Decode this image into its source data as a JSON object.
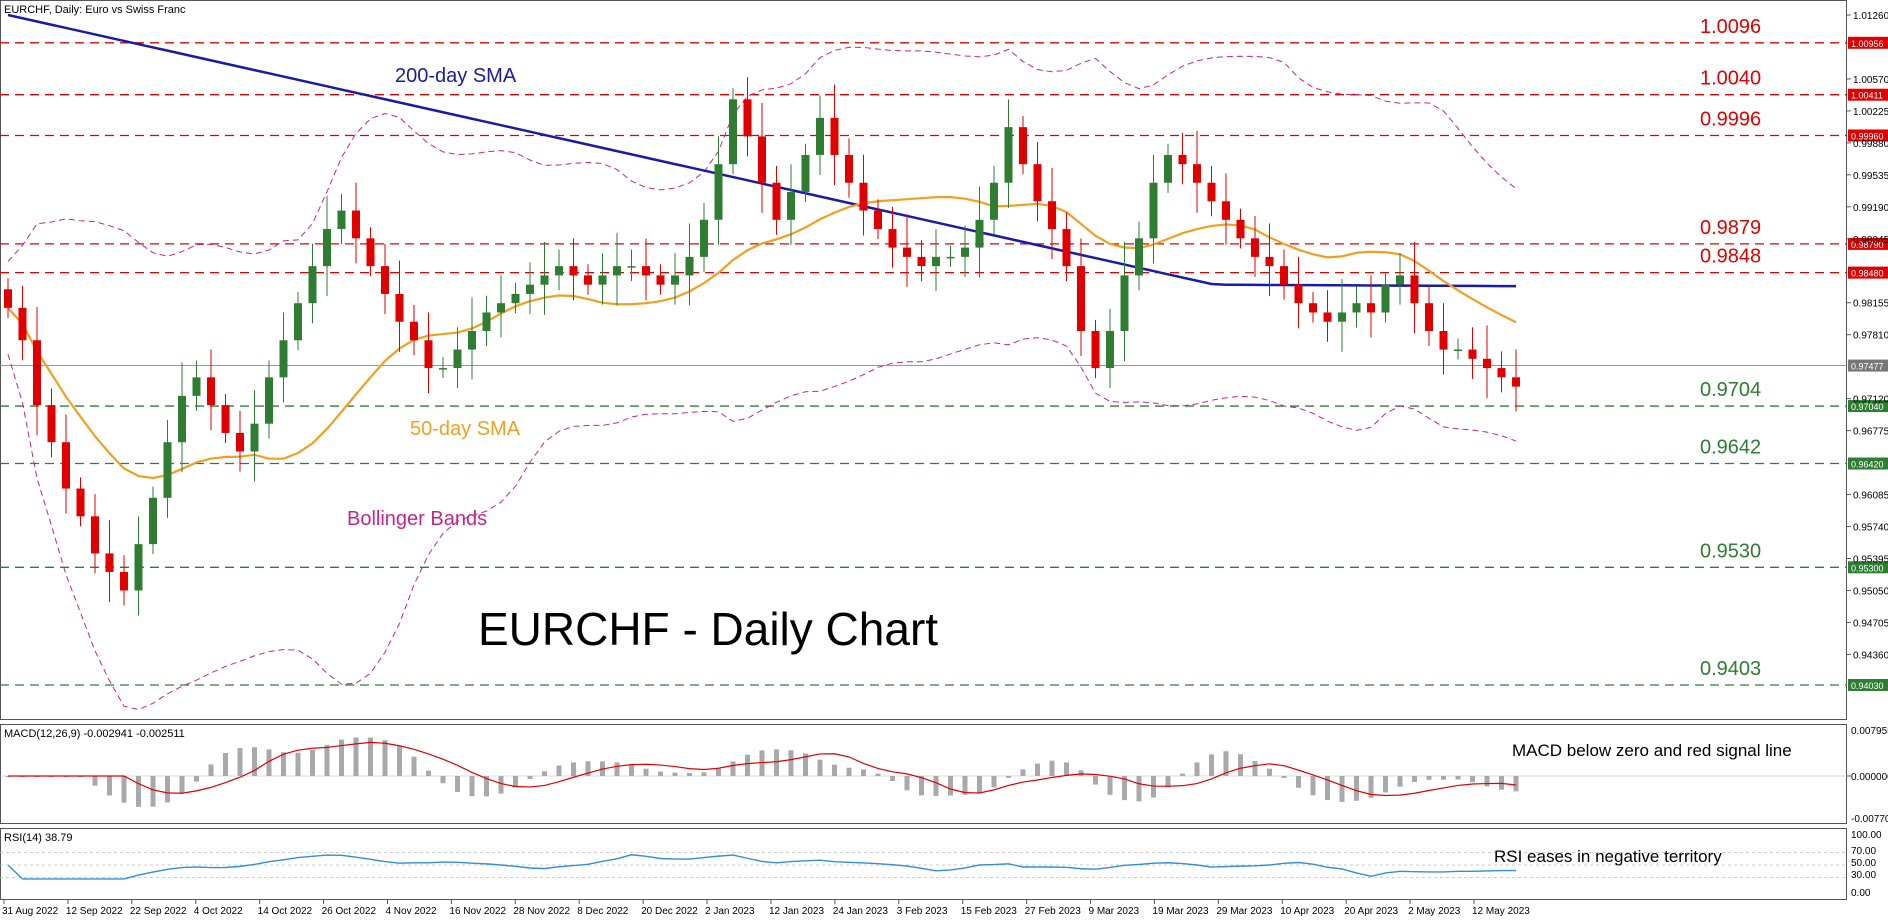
{
  "chart_data": [
    {
      "type": "candlestick",
      "header": "EURCHF, Daily:  Euro vs Swiss Franc",
      "watermark_title": "EURCHF - Daily Chart",
      "y_ticks": [
        "1.01260",
        "1.00956",
        "1.00570",
        "1.00225",
        "0.99880",
        "0.99535",
        "0.99190",
        "0.98845",
        "0.98480",
        "0.98155",
        "0.97810",
        "0.97477",
        "0.97120",
        "0.97040",
        "0.96775",
        "0.96420",
        "0.96085",
        "0.95740",
        "0.95395",
        "0.95300",
        "0.95050",
        "0.94705",
        "0.94360",
        "0.94030"
      ],
      "price_tag": "0.97477",
      "horizontal_levels": [
        {
          "label": "1.0096",
          "tag": "1.00956",
          "value": 1.0096,
          "kind": "resistance"
        },
        {
          "label": "1.0040",
          "tag": "1.00411",
          "value": 1.004,
          "kind": "resistance"
        },
        {
          "label": "0.9996",
          "tag": "0.99960",
          "value": 0.9996,
          "kind": "resistance"
        },
        {
          "label": "0.9879",
          "tag": "0.98790",
          "value": 0.9879,
          "kind": "resistance"
        },
        {
          "label": "0.9848",
          "tag": "0.98480",
          "value": 0.9848,
          "kind": "resistance"
        },
        {
          "label": "0.9704",
          "tag": "0.97040",
          "value": 0.9704,
          "kind": "support"
        },
        {
          "label": "0.9642",
          "tag": "0.96420",
          "value": 0.9642,
          "kind": "support"
        },
        {
          "label": "0.9530",
          "tag": "0.95300",
          "value": 0.953,
          "kind": "support"
        },
        {
          "label": "0.9403",
          "tag": "0.94030",
          "value": 0.9403,
          "kind": "support"
        }
      ],
      "annotations": [
        "200-day SMA",
        "50-day SMA",
        "Bollinger Bands"
      ],
      "x_tick_labels": [
        "31 Aug 2022",
        "12 Sep 2022",
        "22 Sep 2022",
        "4 Oct 2022",
        "14 Oct 2022",
        "26 Oct 2022",
        "4 Nov 2022",
        "16 Nov 2022",
        "28 Nov 2022",
        "8 Dec 2022",
        "20 Dec 2022",
        "2 Jan 2023",
        "12 Jan 2023",
        "24 Jan 2023",
        "3 Feb 2023",
        "15 Feb 2023",
        "27 Feb 2023",
        "9 Mar 2023",
        "19 Mar 2023",
        "29 Mar 2023",
        "10 Apr 2023",
        "20 Apr 2023",
        "2 May 2023",
        "12 May 2023"
      ],
      "colors": {
        "up": "#2e7d32",
        "down": "#e00000",
        "sma200": "#1a1aa8",
        "sma50": "#f0a020",
        "bollinger": "#c8258a",
        "resistance": "#e00000",
        "support": "#2e7d32"
      },
      "close_path": [
        0.981,
        0.9775,
        0.9705,
        0.9665,
        0.9615,
        0.9585,
        0.9545,
        0.9525,
        0.9505,
        0.9555,
        0.9605,
        0.9665,
        0.9715,
        0.9735,
        0.9705,
        0.9675,
        0.9655,
        0.9685,
        0.9735,
        0.9775,
        0.9815,
        0.9855,
        0.9895,
        0.9915,
        0.9885,
        0.9855,
        0.9825,
        0.9795,
        0.9775,
        0.9745,
        0.9745,
        0.9765,
        0.9785,
        0.9805,
        0.9815,
        0.9825,
        0.9835,
        0.9845,
        0.9855,
        0.9845,
        0.9835,
        0.9845,
        0.9855,
        0.9855,
        0.9845,
        0.9835,
        0.9845,
        0.9865,
        0.9905,
        0.9965,
        1.0035,
        0.9995,
        0.9945,
        0.9905,
        0.9935,
        0.9975,
        1.0015,
        0.9975,
        0.9945,
        0.9915,
        0.9895,
        0.9875,
        0.9865,
        0.9855,
        0.9865,
        0.9865,
        0.9875,
        0.9905,
        0.9945,
        1.0005,
        0.9965,
        0.9925,
        0.9895,
        0.9855,
        0.9785,
        0.9745,
        0.9785,
        0.9845,
        0.9885,
        0.9945,
        0.9975,
        0.9965,
        0.9945,
        0.9925,
        0.9905,
        0.9885,
        0.9865,
        0.9855,
        0.9835,
        0.9815,
        0.9805,
        0.9795,
        0.9805,
        0.9815,
        0.9805,
        0.9835,
        0.9845,
        0.9815,
        0.9785,
        0.9765,
        0.9765,
        0.9755,
        0.9745,
        0.9735,
        0.9725
      ]
    },
    {
      "type": "histogram",
      "label": "MACD(12,26,9) -0.002941 -0.002511",
      "y_ticks": [
        "0.007955",
        "0.000000",
        "-0.007706"
      ],
      "annotation": "MACD below zero and red signal line",
      "colors": {
        "histogram": "#a9a9a9",
        "signal": "#e00000"
      }
    },
    {
      "type": "line",
      "label": "RSI(14) 38.79",
      "y_ticks": [
        "100.00",
        "70.00",
        "50.00",
        "30.00",
        "0.00"
      ],
      "annotation": "RSI eases in negative territory",
      "colors": {
        "rsi": "#2f8fdc"
      }
    }
  ]
}
